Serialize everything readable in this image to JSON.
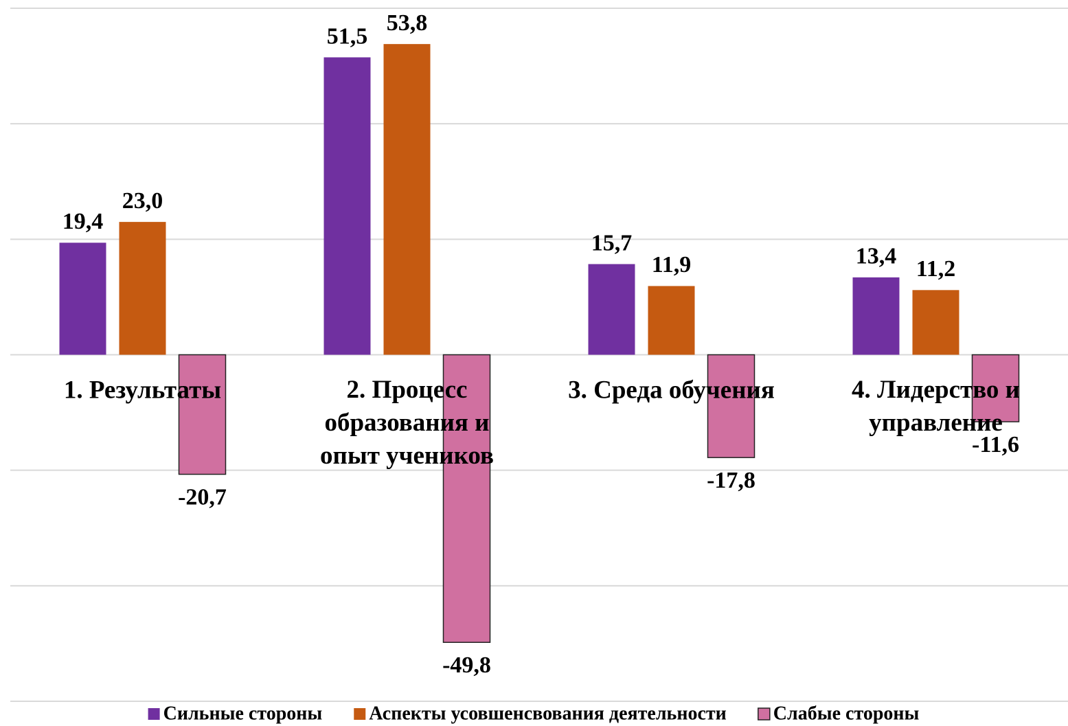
{
  "chart_data": {
    "type": "bar",
    "categories": [
      "1. Результаты",
      "2. Процесс образования и опыт учеников",
      "3. Среда обучения",
      "4. Лидерство и управление"
    ],
    "series": [
      {
        "name": "Сильные стороны",
        "color": "#7030a0",
        "values": [
          19.4,
          51.5,
          15.7,
          13.4
        ],
        "value_labels": [
          "19,4",
          "51,5",
          "15,7",
          "13,4"
        ]
      },
      {
        "name": "Аспекты усовшенсвования деятельности",
        "color": "#c55a11",
        "values": [
          23.0,
          53.8,
          11.9,
          11.2
        ],
        "value_labels": [
          "23,0",
          "53,8",
          "11,9",
          "11,2"
        ]
      },
      {
        "name": "Слабые стороны",
        "color": "#d070a0",
        "values": [
          -20.7,
          -49.8,
          -17.8,
          -11.6
        ],
        "value_labels": [
          "-20,7",
          "-49,8",
          "-17,8",
          "-11,6"
        ]
      }
    ],
    "ylim": [
      -60,
      60
    ],
    "yticks": [
      -60,
      -40,
      -20,
      0,
      20,
      40,
      60
    ],
    "grid": true,
    "legend": "bottom"
  }
}
